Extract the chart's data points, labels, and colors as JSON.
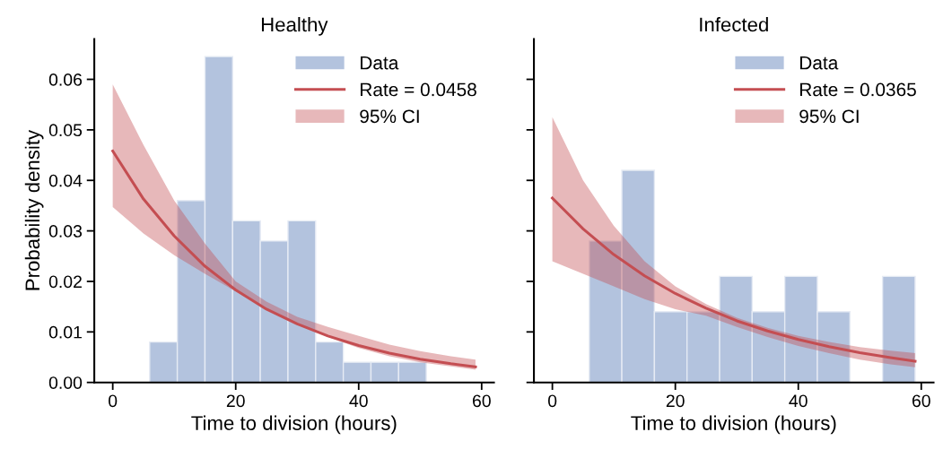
{
  "chart_data": [
    {
      "type": "histogram",
      "title": "Healthy",
      "xlabel": "Time to division (hours)",
      "ylabel": "Probability density",
      "xlim": [
        -3,
        62
      ],
      "xticks": [
        0,
        20,
        40,
        60
      ],
      "ylim": [
        0,
        0.068
      ],
      "yticks": [
        {
          "value": 0,
          "label": "0.00"
        },
        0.01,
        0.02,
        0.03,
        0.04,
        0.05,
        0.06
      ],
      "legend": "top right",
      "bins": [
        6,
        10.5,
        15,
        19.5,
        24,
        28.5,
        33,
        37.5,
        42,
        46.5,
        51
      ],
      "annotations": [
        "95% CI"
      ],
      "series": [
        {
          "type": "histogram",
          "name": "Data",
          "color": "#b3c3de",
          "values": [
            0.008,
            0.036,
            0.0645,
            0.032,
            0.028,
            0.032,
            0.008,
            0.004,
            0.004,
            0.004
          ]
        },
        {
          "type": "line",
          "name": "Rate = 0.0458",
          "color": "#c44e52",
          "x": [
            0,
            5,
            10,
            15,
            20,
            25,
            30,
            35,
            40,
            45,
            50,
            55,
            59
          ],
          "values": [
            0.0458,
            0.0363,
            0.029,
            0.023,
            0.0183,
            0.0145,
            0.0116,
            0.0092,
            0.0073,
            0.0058,
            0.0046,
            0.0037,
            0.0031
          ],
          "lower": [
            0.0347,
            0.0295,
            0.0252,
            0.0215,
            0.018,
            0.0145,
            0.0115,
            0.009,
            0.0068,
            0.0052,
            0.004,
            0.0032,
            0.0025
          ],
          "upper": [
            0.059,
            0.047,
            0.036,
            0.0275,
            0.02,
            0.016,
            0.013,
            0.011,
            0.0092,
            0.0075,
            0.0062,
            0.0052,
            0.0045
          ]
        }
      ]
    },
    {
      "type": "histogram",
      "title": "Infected",
      "xlabel": "Time to division (hours)",
      "xlim": [
        -3,
        62
      ],
      "xticks": [
        0,
        20,
        40,
        60
      ],
      "ylim": [
        0,
        0.068
      ],
      "yticks": [
        0,
        0.01,
        0.02,
        0.03,
        0.04,
        0.05,
        0.06
      ],
      "tick_labels": "x",
      "legend": "top right",
      "bins": [
        6,
        11.3,
        16.6,
        21.9,
        27.2,
        32.5,
        37.8,
        43.1,
        48.4,
        53.7,
        59
      ],
      "annotations": [
        "95% CI"
      ],
      "series": [
        {
          "type": "histogram",
          "name": "Data",
          "color": "#b3c3de",
          "values": [
            0.028,
            0.042,
            0.014,
            0.014,
            0.021,
            0.014,
            0.021,
            0.014,
            0,
            0.021
          ]
        },
        {
          "type": "line",
          "name": "Rate = 0.0365",
          "color": "#c44e52",
          "x": [
            0,
            5,
            10,
            15,
            20,
            25,
            30,
            35,
            40,
            45,
            50,
            55,
            59
          ],
          "values": [
            0.0365,
            0.0304,
            0.0253,
            0.0211,
            0.0176,
            0.0147,
            0.0122,
            0.0102,
            0.0085,
            0.0071,
            0.0059,
            0.0049,
            0.0042
          ],
          "lower": [
            0.024,
            0.0215,
            0.019,
            0.0165,
            0.0145,
            0.0132,
            0.011,
            0.009,
            0.0072,
            0.0058,
            0.0045,
            0.0036,
            0.003
          ],
          "upper": [
            0.0525,
            0.04,
            0.031,
            0.024,
            0.019,
            0.0155,
            0.0128,
            0.0108,
            0.0092,
            0.008,
            0.007,
            0.0063,
            0.0058
          ]
        }
      ]
    }
  ]
}
